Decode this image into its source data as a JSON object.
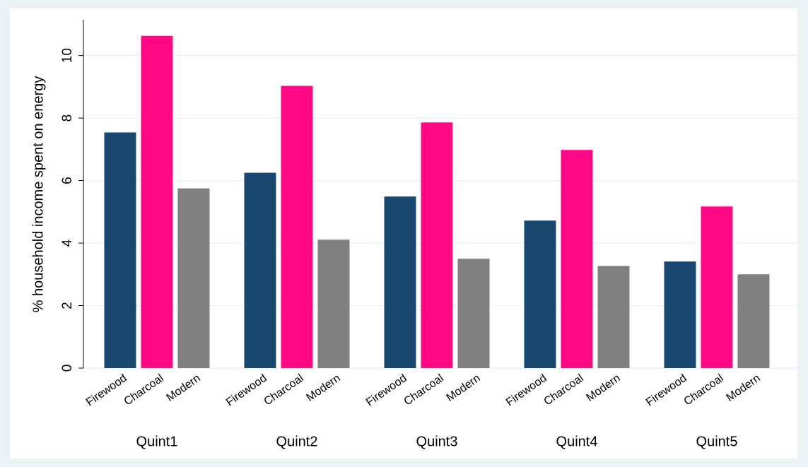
{
  "chart_data": {
    "type": "bar",
    "y_label": "% household income spent on energy",
    "categories": [
      "Quint1",
      "Quint2",
      "Quint3",
      "Quint4",
      "Quint5"
    ],
    "series": [
      {
        "name": "Firewood",
        "color": "#1a476f",
        "values": [
          7.54,
          6.25,
          5.49,
          4.72,
          3.41
        ]
      },
      {
        "name": "Charcoal",
        "color": "#ff0a84",
        "values": [
          10.63,
          9.03,
          7.86,
          6.98,
          5.17
        ]
      },
      {
        "name": "Modern",
        "color": "#808080",
        "values": [
          5.75,
          4.11,
          3.5,
          3.27,
          3.0
        ]
      }
    ],
    "ylim": [
      0,
      11.1
    ],
    "yticks": [
      0,
      2,
      4,
      6,
      8,
      10
    ],
    "grid": true
  }
}
